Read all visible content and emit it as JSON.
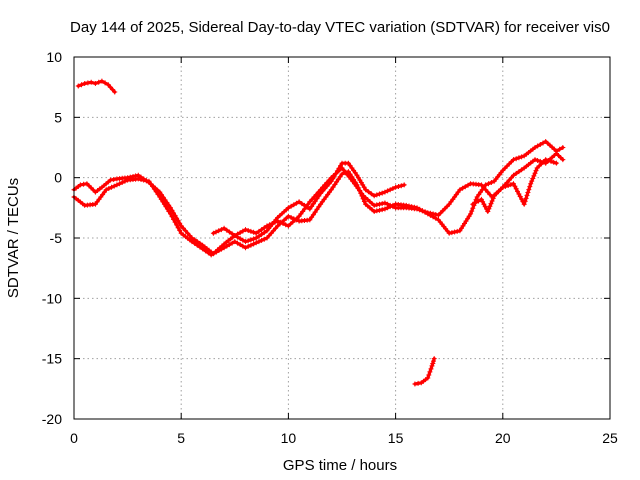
{
  "chart_data": {
    "type": "scatter",
    "title": "Day 144 of 2025, Sidereal Day-to-day VTEC variation (SDTVAR) for receiver vis0",
    "xlabel": "GPS time / hours",
    "ylabel": "SDTVAR / TECUs",
    "xlim": [
      0,
      25
    ],
    "ylim": [
      -20,
      10
    ],
    "xticks": [
      0,
      5,
      10,
      15,
      20,
      25
    ],
    "yticks": [
      -20,
      -15,
      -10,
      -5,
      0,
      5,
      10
    ],
    "xtick_labels": [
      "0",
      "5",
      "10",
      "15",
      "20",
      "25"
    ],
    "ytick_labels": [
      "-20",
      "-15",
      "-10",
      "-5",
      "0",
      "5",
      "10"
    ],
    "grid": true,
    "marker": "plus",
    "color": "#ff0000",
    "series": [
      {
        "name": "upper-left arc",
        "points": [
          [
            0.2,
            7.6
          ],
          [
            0.5,
            7.8
          ],
          [
            0.8,
            7.9
          ],
          [
            1.0,
            7.8
          ],
          [
            1.3,
            8.0
          ],
          [
            1.6,
            7.7
          ],
          [
            1.9,
            7.1
          ]
        ]
      },
      {
        "name": "main track A",
        "points": [
          [
            0,
            -1.0
          ],
          [
            0.3,
            -0.6
          ],
          [
            0.6,
            -0.5
          ],
          [
            1.0,
            -1.2
          ],
          [
            1.3,
            -0.8
          ],
          [
            1.7,
            -0.2
          ],
          [
            2.0,
            -0.1
          ],
          [
            2.5,
            0.0
          ],
          [
            3.0,
            0.2
          ],
          [
            3.5,
            -0.4
          ],
          [
            4.0,
            -1.2
          ],
          [
            4.5,
            -2.5
          ],
          [
            5.0,
            -4.0
          ],
          [
            5.5,
            -5.0
          ],
          [
            6.0,
            -5.6
          ],
          [
            6.5,
            -6.3
          ],
          [
            7.0,
            -5.5
          ],
          [
            7.5,
            -4.8
          ],
          [
            8.0,
            -5.3
          ],
          [
            8.5,
            -5.0
          ],
          [
            9.0,
            -4.4
          ],
          [
            9.5,
            -3.3
          ],
          [
            10.0,
            -2.5
          ],
          [
            10.5,
            -2.0
          ],
          [
            11.0,
            -2.6
          ],
          [
            11.5,
            -1.3
          ],
          [
            12.0,
            -0.3
          ],
          [
            12.5,
            1.2
          ],
          [
            12.8,
            1.2
          ],
          [
            13.2,
            0.2
          ],
          [
            13.6,
            -1.0
          ],
          [
            14.0,
            -1.5
          ],
          [
            14.5,
            -1.2
          ],
          [
            15.0,
            -0.8
          ],
          [
            15.4,
            -0.6
          ]
        ]
      },
      {
        "name": "main track B",
        "points": [
          [
            0,
            -1.6
          ],
          [
            0.5,
            -2.3
          ],
          [
            1.0,
            -2.2
          ],
          [
            1.5,
            -1.0
          ],
          [
            2.0,
            -0.6
          ],
          [
            2.5,
            -0.2
          ],
          [
            3.0,
            -0.1
          ],
          [
            3.5,
            -0.3
          ],
          [
            4.0,
            -1.6
          ],
          [
            4.5,
            -3.0
          ],
          [
            5.0,
            -4.6
          ],
          [
            5.5,
            -5.3
          ],
          [
            6.0,
            -5.9
          ],
          [
            6.4,
            -6.4
          ],
          [
            7.0,
            -5.8
          ],
          [
            7.5,
            -5.3
          ],
          [
            8.0,
            -5.8
          ],
          [
            8.5,
            -5.4
          ],
          [
            9.0,
            -5.0
          ],
          [
            9.5,
            -4.0
          ],
          [
            10.0,
            -3.2
          ],
          [
            10.5,
            -3.6
          ],
          [
            11.0,
            -3.5
          ],
          [
            11.5,
            -2.2
          ],
          [
            12.0,
            -1.0
          ],
          [
            12.5,
            0.3
          ],
          [
            12.8,
            0.5
          ],
          [
            13.2,
            -0.6
          ],
          [
            13.6,
            -2.2
          ],
          [
            14.0,
            -2.8
          ],
          [
            14.5,
            -2.6
          ],
          [
            15.0,
            -2.2
          ],
          [
            15.5,
            -2.3
          ],
          [
            16.0,
            -2.5
          ],
          [
            16.5,
            -3.0
          ],
          [
            17.0,
            -3.5
          ],
          [
            17.5,
            -4.6
          ],
          [
            18.0,
            -4.4
          ],
          [
            18.5,
            -3.0
          ],
          [
            18.8,
            -1.6
          ],
          [
            19.2,
            -0.6
          ],
          [
            19.6,
            -0.3
          ],
          [
            20.0,
            0.6
          ],
          [
            20.5,
            1.5
          ],
          [
            21.0,
            1.8
          ],
          [
            21.5,
            2.5
          ],
          [
            22.0,
            3.0
          ],
          [
            22.5,
            2.2
          ],
          [
            22.8,
            2.5
          ]
        ]
      },
      {
        "name": "main track C",
        "points": [
          [
            6.5,
            -4.6
          ],
          [
            7.0,
            -4.2
          ],
          [
            7.5,
            -4.8
          ],
          [
            8.0,
            -4.3
          ],
          [
            8.5,
            -4.6
          ],
          [
            9.0,
            -4.0
          ],
          [
            9.5,
            -3.6
          ],
          [
            10.0,
            -4.0
          ],
          [
            10.5,
            -3.2
          ],
          [
            11.0,
            -2.0
          ],
          [
            11.5,
            -1.0
          ],
          [
            12.0,
            0.0
          ],
          [
            12.5,
            0.8
          ],
          [
            13.0,
            -0.3
          ],
          [
            13.5,
            -1.5
          ],
          [
            14.0,
            -2.3
          ],
          [
            14.5,
            -2.1
          ],
          [
            15.0,
            -2.5
          ],
          [
            15.5,
            -2.5
          ],
          [
            16.0,
            -2.6
          ],
          [
            16.5,
            -2.9
          ],
          [
            17.0,
            -3.1
          ],
          [
            17.5,
            -2.2
          ],
          [
            18.0,
            -1.0
          ],
          [
            18.5,
            -0.5
          ],
          [
            19.0,
            -0.6
          ],
          [
            19.5,
            -1.6
          ],
          [
            20.0,
            -0.8
          ],
          [
            20.5,
            0.2
          ],
          [
            21.0,
            0.8
          ],
          [
            21.5,
            1.5
          ],
          [
            22.0,
            1.2
          ],
          [
            22.5,
            2.0
          ],
          [
            22.8,
            1.5
          ]
        ]
      },
      {
        "name": "late branch",
        "points": [
          [
            18.6,
            -2.2
          ],
          [
            19.0,
            -1.8
          ],
          [
            19.3,
            -2.8
          ],
          [
            19.6,
            -1.5
          ],
          [
            20.0,
            -0.8
          ],
          [
            20.5,
            -0.5
          ],
          [
            21.0,
            -2.2
          ],
          [
            21.3,
            -0.5
          ],
          [
            21.6,
            0.8
          ],
          [
            22.0,
            1.5
          ],
          [
            22.5,
            1.2
          ]
        ]
      },
      {
        "name": "lower isolated segment",
        "points": [
          [
            15.9,
            -17.1
          ],
          [
            16.2,
            -17.0
          ],
          [
            16.5,
            -16.6
          ],
          [
            16.7,
            -15.6
          ],
          [
            16.8,
            -15.0
          ]
        ]
      }
    ]
  }
}
